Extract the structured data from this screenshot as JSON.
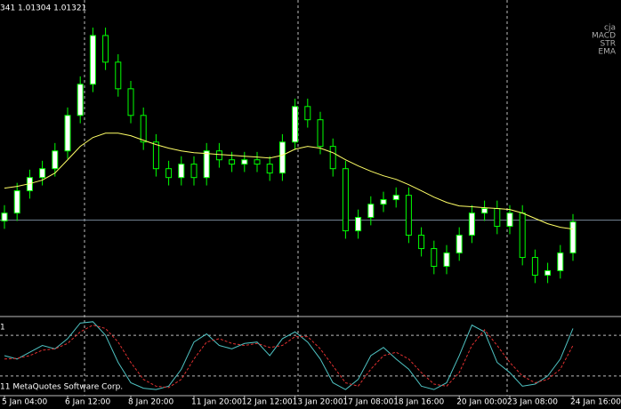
{
  "chart_data": [
    {
      "type": "candlestick",
      "header": "341 1.01304 1.01321",
      "indicator_labels": [
        "cja",
        "MACD",
        "STR",
        "EMA"
      ],
      "ylim": [
        1.0084,
        1.0244
      ],
      "bid_line": 1.01324,
      "up_color": "#ffffff",
      "down_color": "#000000",
      "line_color": "#00ff00",
      "open": [
        1.0132,
        1.0136,
        1.01473,
        1.0154,
        1.01585,
        1.01675,
        1.01855,
        1.02013,
        1.0226,
        1.02125,
        1.0199,
        1.01855,
        1.0172,
        1.01585,
        1.0154,
        1.01608,
        1.0154,
        1.01675,
        1.0163,
        1.01608,
        1.0163,
        1.01608,
        1.01563,
        1.0172,
        1.019,
        1.01833,
        1.01698,
        1.01585,
        1.0127,
        1.01338,
        1.01405,
        1.01428,
        1.0145,
        1.01248,
        1.0118,
        1.0109,
        1.01158,
        1.01248,
        1.0136,
        1.01383,
        1.01293,
        1.0136,
        1.01135,
        1.01045,
        1.01068,
        1.01158
      ],
      "high": [
        1.014,
        1.01513,
        1.0158,
        1.01625,
        1.01715,
        1.01895,
        1.02053,
        1.023,
        1.023,
        1.02165,
        1.0203,
        1.01895,
        1.0176,
        1.01625,
        1.01648,
        1.01648,
        1.01715,
        1.01715,
        1.0167,
        1.0167,
        1.0167,
        1.01648,
        1.0176,
        1.0194,
        1.0194,
        1.01873,
        1.01738,
        1.01625,
        1.01378,
        1.01445,
        1.01468,
        1.0149,
        1.0149,
        1.01288,
        1.0122,
        1.01198,
        1.01288,
        1.014,
        1.01423,
        1.01423,
        1.014,
        1.014,
        1.01175,
        1.01108,
        1.01198,
        1.01355
      ],
      "low": [
        1.0128,
        1.0132,
        1.01433,
        1.015,
        1.01545,
        1.01635,
        1.01815,
        1.01973,
        1.02085,
        1.0195,
        1.01815,
        1.0168,
        1.01545,
        1.015,
        1.015,
        1.015,
        1.015,
        1.0159,
        1.01568,
        1.01568,
        1.01568,
        1.01523,
        1.01523,
        1.0168,
        1.01793,
        1.01658,
        1.01545,
        1.0123,
        1.0123,
        1.01298,
        1.01365,
        1.01388,
        1.01208,
        1.0114,
        1.0105,
        1.0105,
        1.01118,
        1.01208,
        1.0132,
        1.01253,
        1.01253,
        1.01095,
        1.01005,
        1.01005,
        1.01028,
        1.01118
      ],
      "close": [
        1.0136,
        1.01473,
        1.0154,
        1.01585,
        1.01675,
        1.01855,
        1.02013,
        1.0226,
        1.02125,
        1.0199,
        1.01855,
        1.0172,
        1.01585,
        1.0154,
        1.01608,
        1.0154,
        1.01675,
        1.0163,
        1.01608,
        1.0163,
        1.01608,
        1.01563,
        1.0172,
        1.019,
        1.01833,
        1.01698,
        1.01585,
        1.0127,
        1.01338,
        1.01405,
        1.01428,
        1.0145,
        1.01248,
        1.0118,
        1.0109,
        1.01158,
        1.01248,
        1.0136,
        1.01383,
        1.01293,
        1.0136,
        1.01135,
        1.01045,
        1.01068,
        1.01158,
        1.01315
      ],
      "ema": {
        "color": "#ffff66",
        "values": [
          1.01486,
          1.01495,
          1.01509,
          1.01527,
          1.01563,
          1.0163,
          1.01698,
          1.01743,
          1.01765,
          1.01765,
          1.01752,
          1.01729,
          1.01707,
          1.01689,
          1.01675,
          1.01666,
          1.01662,
          1.01657,
          1.01653,
          1.01648,
          1.01644,
          1.01639,
          1.01653,
          1.01684,
          1.01698,
          1.01689,
          1.01666,
          1.0163,
          1.01599,
          1.01572,
          1.01549,
          1.01531,
          1.01504,
          1.01473,
          1.01441,
          1.01414,
          1.01396,
          1.01392,
          1.01387,
          1.01383,
          1.01378,
          1.0136,
          1.01333,
          1.01306,
          1.01288,
          1.01279
        ]
      }
    },
    {
      "type": "line",
      "label": "1",
      "footer": "11 MetaQuotes Software Corp.",
      "ylim": [
        -9,
        105
      ],
      "levels": [
        80,
        20
      ],
      "categories": [
        "5 Jan 04:00",
        null,
        null,
        null,
        null,
        "6 Jan 12:00",
        null,
        null,
        null,
        null,
        "8 Jan 20:00",
        null,
        null,
        null,
        null,
        "11 Jan 20:00",
        null,
        null,
        null,
        "12 Jan 12:00",
        null,
        null,
        null,
        "13 Jan 20:00",
        null,
        null,
        null,
        "17 Jan 08:00",
        null,
        null,
        null,
        "18 Jan 16:00",
        null,
        null,
        null,
        null,
        "20 Jan 00:00",
        null,
        null,
        null,
        "23 Jan 08:00",
        null,
        null,
        null,
        null,
        "24 Jan 16:00"
      ],
      "series": [
        {
          "color": "#4fc3c3",
          "dash": false,
          "values": [
            50,
            45,
            55,
            65,
            60,
            75,
            98,
            100,
            80,
            40,
            10,
            2,
            0,
            5,
            30,
            70,
            82,
            65,
            60,
            68,
            70,
            50,
            75,
            85,
            70,
            45,
            10,
            0,
            15,
            50,
            62,
            45,
            30,
            5,
            0,
            10,
            50,
            95,
            85,
            40,
            25,
            5,
            8,
            20,
            45,
            90
          ]
        },
        {
          "color": "#e03030",
          "dash": true,
          "values": [
            45,
            46,
            50,
            58,
            60,
            68,
            85,
            95,
            90,
            70,
            40,
            15,
            5,
            3,
            15,
            45,
            70,
            75,
            68,
            65,
            68,
            62,
            65,
            78,
            78,
            60,
            35,
            10,
            5,
            30,
            50,
            55,
            45,
            25,
            8,
            5,
            25,
            65,
            88,
            65,
            40,
            20,
            10,
            15,
            30,
            65
          ]
        }
      ]
    }
  ]
}
